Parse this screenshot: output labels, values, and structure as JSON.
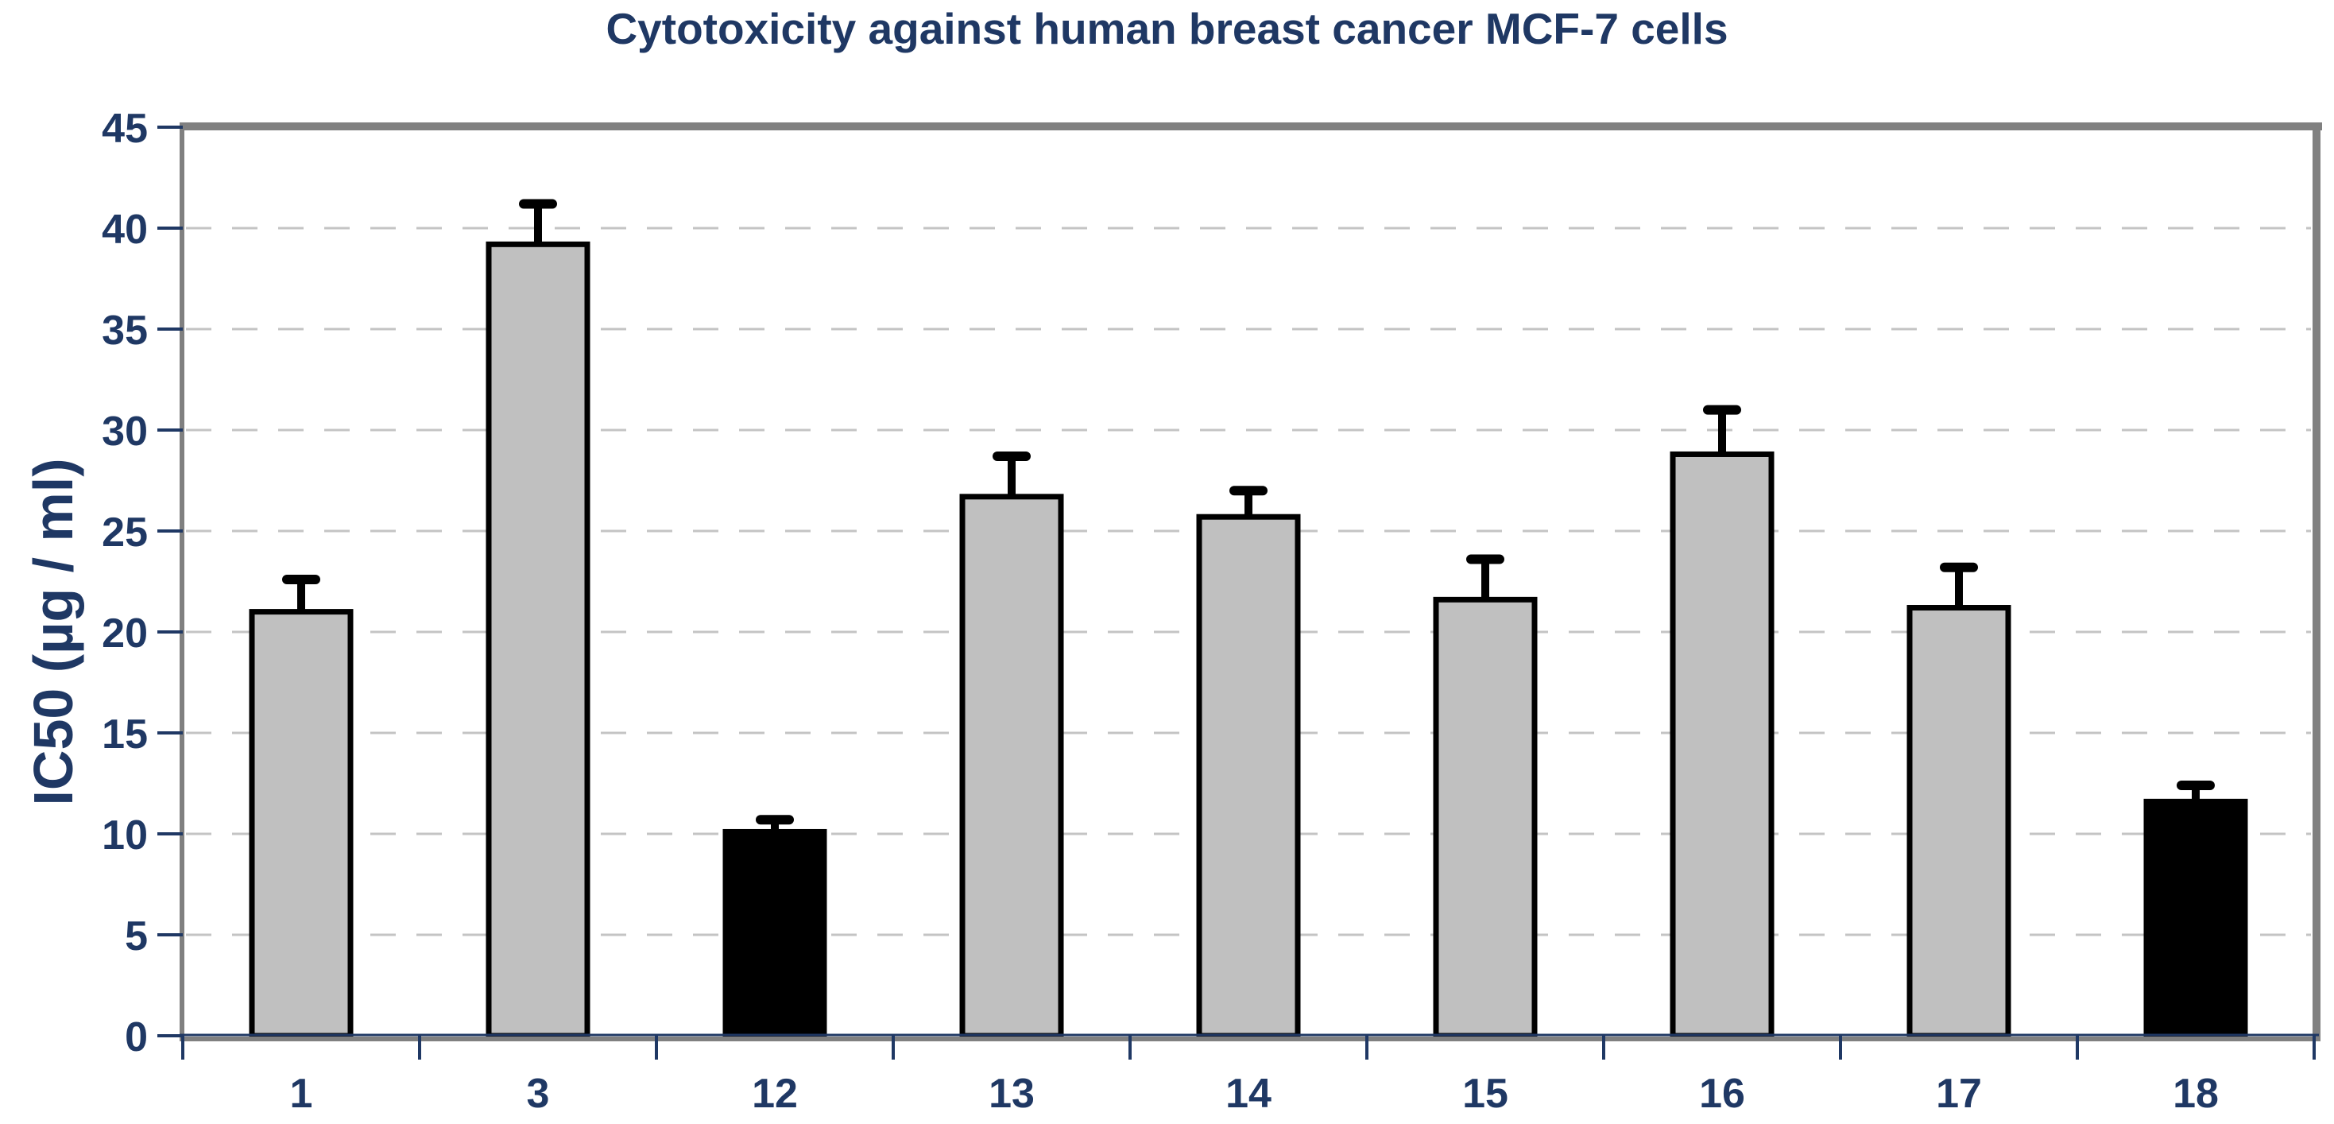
{
  "page": {
    "background": "#FFFFFF"
  },
  "chart_data": {
    "type": "bar",
    "title": "Cytotoxicity against human breast cancer MCF-7 cells",
    "ylabel": "IC50 (µg / ml)",
    "xlabel": "",
    "categories": [
      "1",
      "3",
      "12",
      "13",
      "14",
      "15",
      "16",
      "17",
      "18"
    ],
    "values": [
      21.0,
      39.2,
      10.1,
      26.7,
      25.7,
      21.6,
      28.8,
      21.2,
      11.6
    ],
    "errors_plus": [
      1.6,
      2.0,
      0.6,
      2.0,
      1.3,
      2.0,
      2.2,
      2.0,
      0.8
    ],
    "bar_colors": [
      "#C0C0C0",
      "#C0C0C0",
      "#000000",
      "#C0C0C0",
      "#C0C0C0",
      "#C0C0C0",
      "#C0C0C0",
      "#C0C0C0",
      "#000000"
    ],
    "ylim": [
      0,
      45
    ],
    "ytick_step": 5,
    "ytick_labels": [
      "0",
      "5",
      "10",
      "15",
      "20",
      "25",
      "30",
      "35",
      "40",
      "45"
    ],
    "grid": "horizontal-dashed",
    "legend": "none",
    "colors": {
      "text": "#1F3864",
      "bar_default": "#C0C0C0",
      "bar_highlight": "#000000",
      "bar_border": "#000000",
      "error_bar": "#000000",
      "axis_frame": "#808080",
      "gridline": "#C4C4C4"
    }
  }
}
